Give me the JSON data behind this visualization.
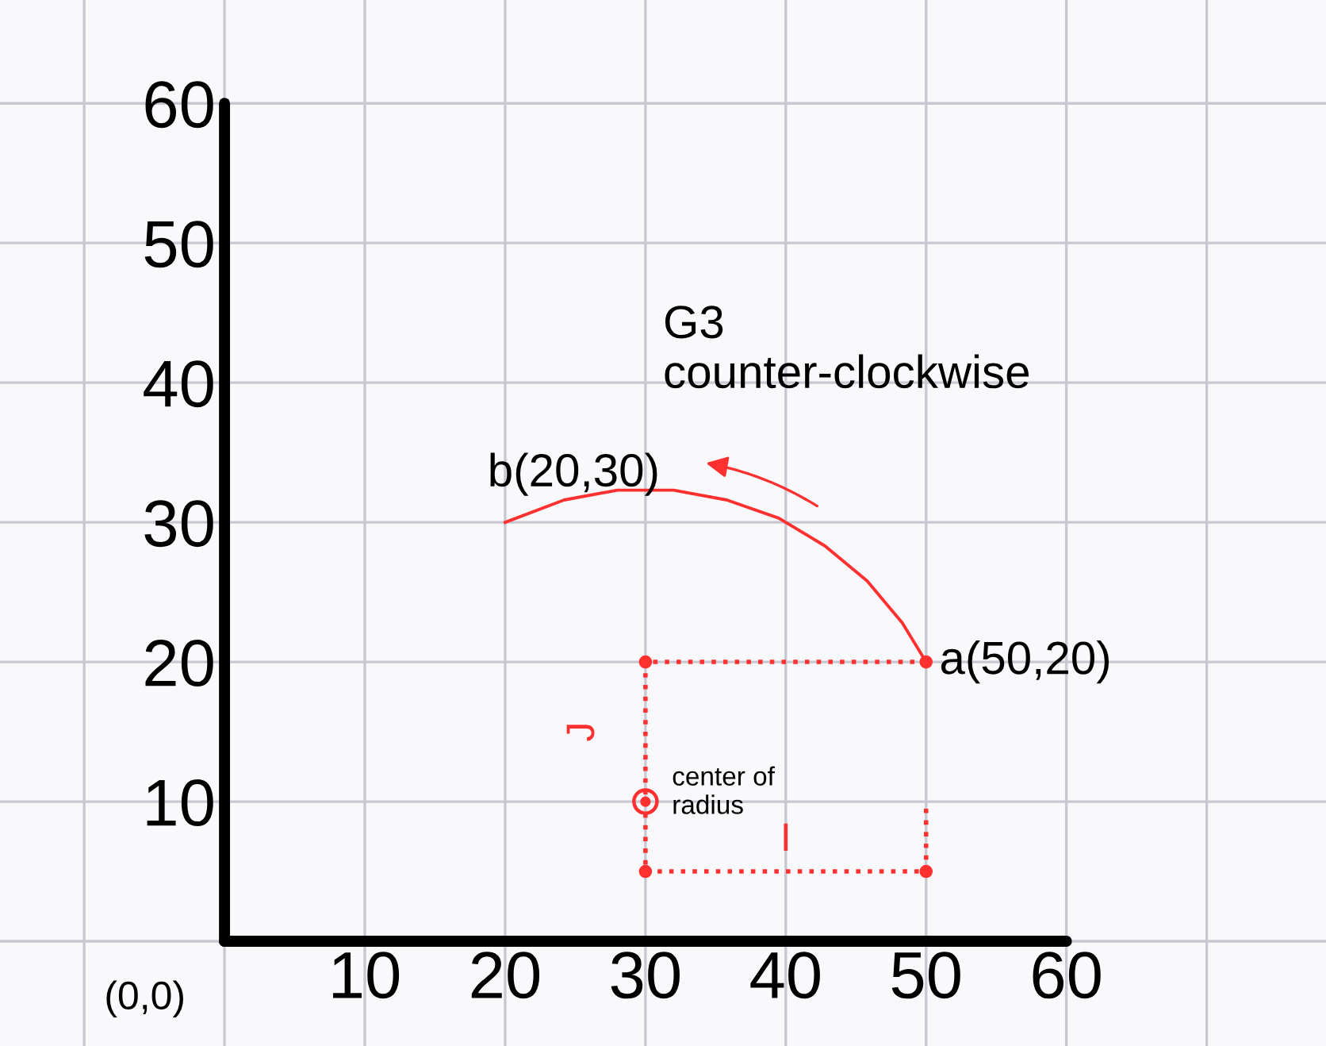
{
  "chart_data": {
    "type": "line",
    "xlim": [
      -16,
      78.5
    ],
    "ylim": [
      -7.5,
      67.4
    ],
    "xticks": [
      {
        "value": -10,
        "label": null
      },
      {
        "value": 0,
        "label": null
      },
      10,
      20,
      30,
      40,
      50,
      60,
      {
        "value": 70,
        "label": null
      }
    ],
    "yticks": [
      {
        "value": 0,
        "label": null
      },
      10,
      20,
      30,
      40,
      50,
      60
    ],
    "grid": true,
    "series": [
      {
        "color": "#ff3030",
        "line_style": "solid",
        "marker": "none",
        "x": [
          50,
          48.3,
          45.8,
          42.8,
          39.5,
          35.8,
          32.0,
          28.0,
          24.2,
          20
        ],
        "values": [
          20,
          22.8,
          25.8,
          28.3,
          30.3,
          31.6,
          32.3,
          32.3,
          31.6,
          30
        ]
      },
      {
        "color": "#ff3030",
        "line_style": "dotted",
        "marker": "circle",
        "x": [
          50,
          30,
          30,
          50,
          50
        ],
        "values": [
          20,
          20,
          5,
          5,
          10
        ]
      },
      {
        "type": "scatter",
        "color": "#ff3030",
        "marker": "circle",
        "x": [
          30
        ],
        "values": [
          10
        ]
      }
    ],
    "annotations": [
      {
        "text": "a(50,20)",
        "x": 50,
        "y": 20
      },
      {
        "text": "b(20,30)",
        "x": 20,
        "y": 30
      },
      {
        "text": "center of\nradius",
        "x": 30,
        "y": 10
      },
      "G3\ncounter-clockwise",
      {
        "text": "J",
        "x": 30,
        "y": 15
      },
      {
        "text": "I",
        "x": 40,
        "y": 5
      },
      "(0,0)"
    ]
  }
}
